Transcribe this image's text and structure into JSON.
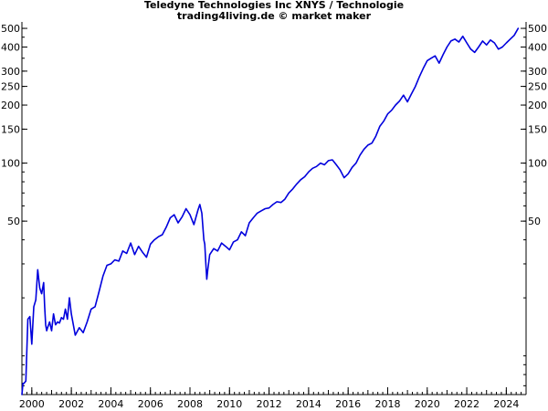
{
  "header": {
    "title": "Teledyne Technologies Inc XNYS / Technologie",
    "subtitle": "trading4living.de © market maker"
  },
  "colors": {
    "line": "#0000dd",
    "axis": "#000000",
    "background": "#ffffff"
  },
  "chart_data": {
    "type": "line",
    "title": "Teledyne Technologies Inc XNYS / Technologie",
    "subtitle": "trading4living.de © market maker",
    "xlabel": "",
    "ylabel": "",
    "y_scale": "log",
    "grid": false,
    "xlim": [
      1999.5,
      2025.0
    ],
    "ylim": [
      6.3,
      540
    ],
    "y_ticks_left": [
      500,
      400,
      300,
      250,
      200,
      150,
      100,
      50
    ],
    "y_ticks_right": [
      500,
      400,
      300,
      250,
      200,
      150,
      100,
      50
    ],
    "x_ticks": [
      "2000",
      "2002",
      "2004",
      "2006",
      "2008",
      "2010",
      "2012",
      "2014",
      "2016",
      "2018",
      "2020",
      "2022",
      "2024"
    ],
    "series": [
      {
        "x": [
          1999.5,
          1999.55,
          1999.6,
          1999.7,
          1999.8,
          1999.9,
          2000.0,
          2000.1,
          2000.2,
          2000.3,
          2000.4,
          2000.5,
          2000.6,
          2000.65,
          2000.7,
          2000.75,
          2000.8,
          2000.9,
          2001.0,
          2001.1,
          2001.2,
          2001.3,
          2001.4,
          2001.5,
          2001.6,
          2001.7,
          2001.8,
          2001.9,
          2002.0,
          2002.2,
          2002.4,
          2002.6,
          2002.8,
          2003.0,
          2003.2,
          2003.4,
          2003.6,
          2003.8,
          2004.0,
          2004.2,
          2004.4,
          2004.6,
          2004.8,
          2005.0,
          2005.2,
          2005.4,
          2005.6,
          2005.8,
          2006.0,
          2006.2,
          2006.4,
          2006.6,
          2006.8,
          2007.0,
          2007.2,
          2007.4,
          2007.6,
          2007.8,
          2008.0,
          2008.2,
          2008.4,
          2008.5,
          2008.6,
          2008.7,
          2008.75,
          2008.8,
          2008.85,
          2008.9,
          2009.0,
          2009.2,
          2009.4,
          2009.6,
          2009.8,
          2010.0,
          2010.2,
          2010.4,
          2010.6,
          2010.8,
          2011.0,
          2011.2,
          2011.4,
          2011.6,
          2011.8,
          2012.0,
          2012.2,
          2012.4,
          2012.6,
          2012.8,
          2013.0,
          2013.2,
          2013.4,
          2013.6,
          2013.8,
          2014.0,
          2014.2,
          2014.4,
          2014.6,
          2014.8,
          2015.0,
          2015.2,
          2015.4,
          2015.6,
          2015.8,
          2016.0,
          2016.2,
          2016.4,
          2016.6,
          2016.8,
          2017.0,
          2017.2,
          2017.4,
          2017.6,
          2017.8,
          2018.0,
          2018.2,
          2018.4,
          2018.6,
          2018.8,
          2019.0,
          2019.2,
          2019.4,
          2019.6,
          2019.8,
          2020.0,
          2020.2,
          2020.4,
          2020.6,
          2020.8,
          2021.0,
          2021.2,
          2021.4,
          2021.6,
          2021.8,
          2022.0,
          2022.2,
          2022.4,
          2022.6,
          2022.8,
          2023.0,
          2023.2,
          2023.4,
          2023.6,
          2023.8,
          2024.0,
          2024.2,
          2024.4,
          2024.5,
          2024.6
        ],
        "values": [
          6.3,
          7.2,
          7.2,
          7.4,
          15.5,
          16.0,
          11.5,
          18.0,
          19.5,
          28.0,
          22.5,
          21.0,
          24.0,
          18.0,
          14.5,
          13.5,
          14.0,
          15.0,
          13.5,
          16.5,
          14.5,
          15.0,
          14.8,
          15.8,
          15.5,
          17.5,
          15.5,
          20.0,
          16.5,
          12.8,
          14.0,
          13.2,
          15.0,
          17.5,
          18.0,
          21.5,
          26.0,
          29.5,
          30.0,
          31.5,
          31.0,
          35.0,
          34.0,
          38.5,
          33.5,
          37.0,
          34.5,
          32.5,
          38.0,
          40.0,
          41.5,
          42.5,
          46.5,
          52.0,
          54.0,
          49.0,
          52.5,
          58.0,
          54.0,
          48.0,
          57.0,
          61.0,
          55.0,
          40.0,
          38.0,
          30.5,
          25.0,
          28.0,
          33.5,
          36.0,
          35.0,
          38.5,
          37.0,
          35.5,
          39.0,
          40.0,
          44.0,
          42.0,
          49.0,
          52.0,
          55.0,
          56.5,
          58.0,
          58.5,
          61.0,
          63.0,
          62.5,
          65.0,
          70.0,
          73.5,
          78.0,
          82.0,
          85.0,
          90.0,
          94.0,
          96.0,
          100.0,
          98.0,
          103.0,
          104.0,
          98.0,
          92.0,
          84.0,
          88.0,
          95.0,
          100.0,
          110.0,
          118.0,
          124.0,
          127.0,
          138.0,
          155.0,
          165.0,
          180.0,
          188.0,
          200.0,
          210.0,
          225.0,
          208.0,
          228.0,
          250.0,
          280.0,
          310.0,
          340.0,
          350.0,
          360.0,
          330.0,
          365.0,
          400.0,
          430.0,
          440.0,
          425.0,
          455.0,
          420.0,
          390.0,
          375.0,
          400.0,
          430.0,
          410.0,
          435.0,
          420.0,
          390.0,
          400.0,
          420.0,
          440.0,
          460.0,
          480.0,
          500.0
        ]
      }
    ]
  }
}
